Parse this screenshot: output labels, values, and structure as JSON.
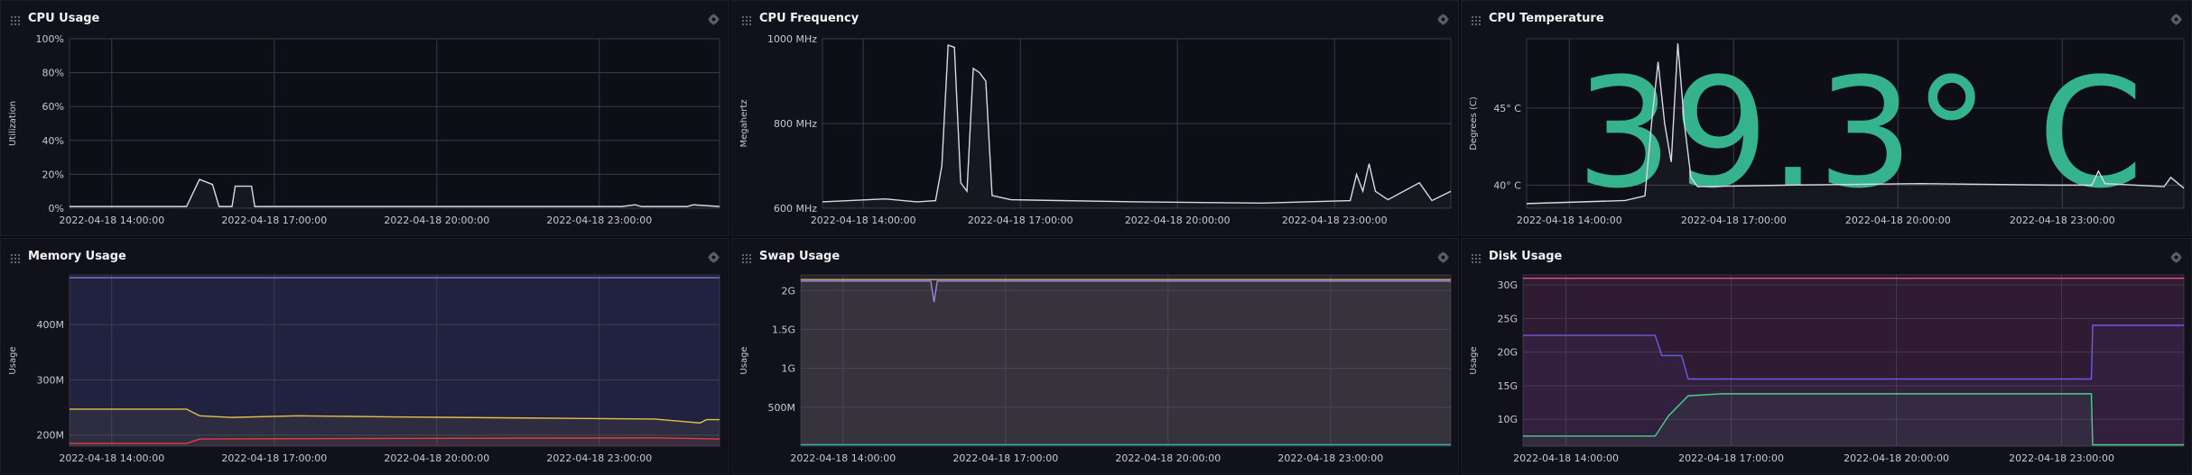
{
  "panels": [
    {
      "title": "CPU Usage",
      "ylabel": "Utilization"
    },
    {
      "title": "CPU Frequency",
      "ylabel": "Megahertz"
    },
    {
      "title": "CPU Temperature",
      "ylabel": "Degrees (C)",
      "big_value": "39.3° C"
    },
    {
      "title": "Memory Usage",
      "ylabel": "Usage"
    },
    {
      "title": "Swap Usage",
      "ylabel": "Usage"
    },
    {
      "title": "Disk Usage",
      "ylabel": "Usage"
    }
  ],
  "icons": {
    "drag": "drag-handle-icon",
    "settings": "gear-icon"
  },
  "colors": {
    "accent_teal": "#35b38c",
    "line_light": "#d9d9e6",
    "memory_yellow": "#e2c046",
    "memory_red": "#d9443b",
    "swap_teal": "#2db3a6",
    "disk_pink": "#e2548a",
    "disk_purple": "#6b5ce6",
    "disk_green": "#48d08a"
  },
  "chart_data": [
    {
      "id": "cpu-usage",
      "type": "line",
      "x_ticks": [
        "2022-04-18 14:00:00",
        "2022-04-18 17:00:00",
        "2022-04-18 20:00:00",
        "2022-04-18 23:00:00"
      ],
      "y_ticks": [
        "0%",
        "20%",
        "40%",
        "60%",
        "80%",
        "100%"
      ],
      "ylim": [
        0,
        100
      ],
      "ylabel": "Utilization",
      "series": [
        {
          "color": "#d9d9e6",
          "points": [
            [
              0,
              1
            ],
            [
              0.18,
              1
            ],
            [
              0.2,
              17
            ],
            [
              0.22,
              14
            ],
            [
              0.23,
              1
            ],
            [
              0.25,
              1
            ],
            [
              0.255,
              13
            ],
            [
              0.28,
              13
            ],
            [
              0.285,
              1
            ],
            [
              0.85,
              1
            ],
            [
              0.87,
              2
            ],
            [
              0.88,
              1
            ],
            [
              0.95,
              1
            ],
            [
              0.96,
              2
            ],
            [
              1,
              1
            ]
          ]
        }
      ]
    },
    {
      "id": "cpu-frequency",
      "type": "line",
      "x_ticks": [
        "2022-04-18 14:00:00",
        "2022-04-18 17:00:00",
        "2022-04-18 20:00:00",
        "2022-04-18 23:00:00"
      ],
      "y_ticks": [
        "600 MHz",
        "800 MHz",
        "1000 MHz"
      ],
      "ylim": [
        600,
        1000
      ],
      "ylabel": "Megahertz",
      "series": [
        {
          "color": "#d9d9e6",
          "points": [
            [
              0,
              615
            ],
            [
              0.1,
              622
            ],
            [
              0.15,
              615
            ],
            [
              0.18,
              618
            ],
            [
              0.19,
              700
            ],
            [
              0.2,
              985
            ],
            [
              0.21,
              980
            ],
            [
              0.22,
              660
            ],
            [
              0.23,
              640
            ],
            [
              0.24,
              930
            ],
            [
              0.25,
              920
            ],
            [
              0.26,
              900
            ],
            [
              0.27,
              630
            ],
            [
              0.3,
              620
            ],
            [
              0.5,
              615
            ],
            [
              0.7,
              612
            ],
            [
              0.84,
              618
            ],
            [
              0.85,
              680
            ],
            [
              0.86,
              640
            ],
            [
              0.87,
              705
            ],
            [
              0.88,
              640
            ],
            [
              0.9,
              620
            ],
            [
              0.95,
              660
            ],
            [
              0.97,
              618
            ],
            [
              1,
              640
            ]
          ]
        }
      ]
    },
    {
      "id": "cpu-temperature",
      "type": "line",
      "x_ticks": [
        "2022-04-18 14:00:00",
        "2022-04-18 17:00:00",
        "2022-04-18 20:00:00",
        "2022-04-18 23:00:00"
      ],
      "y_ticks": [
        "40° C",
        "45° C"
      ],
      "ylim": [
        38.5,
        49.5
      ],
      "ylabel": "Degrees (C)",
      "series": [
        {
          "color": "#d9d9e6",
          "points": [
            [
              0,
              38.8
            ],
            [
              0.15,
              39
            ],
            [
              0.18,
              39.3
            ],
            [
              0.19,
              44
            ],
            [
              0.2,
              48
            ],
            [
              0.21,
              44
            ],
            [
              0.22,
              41.5
            ],
            [
              0.23,
              49.2
            ],
            [
              0.24,
              44
            ],
            [
              0.25,
              40.5
            ],
            [
              0.26,
              39.9
            ],
            [
              0.4,
              40
            ],
            [
              0.6,
              40.1
            ],
            [
              0.8,
              40
            ],
            [
              0.86,
              40
            ],
            [
              0.87,
              40.9
            ],
            [
              0.88,
              40.1
            ],
            [
              0.97,
              39.9
            ],
            [
              0.98,
              40.5
            ],
            [
              1,
              39.8
            ]
          ]
        }
      ]
    },
    {
      "id": "memory-usage",
      "type": "area",
      "x_ticks": [
        "2022-04-18 14:00:00",
        "2022-04-18 17:00:00",
        "2022-04-18 20:00:00",
        "2022-04-18 23:00:00"
      ],
      "y_ticks": [
        "200M",
        "300M",
        "400M"
      ],
      "ylim": [
        180,
        490
      ],
      "ylabel": "Usage",
      "series": [
        {
          "color": "#7b7fd0",
          "points": [
            [
              0,
              485
            ],
            [
              1,
              485
            ]
          ]
        },
        {
          "color": "#e2c046",
          "points": [
            [
              0,
              247
            ],
            [
              0.18,
              247
            ],
            [
              0.2,
              235
            ],
            [
              0.25,
              232
            ],
            [
              0.35,
              235
            ],
            [
              0.5,
              233
            ],
            [
              0.7,
              231
            ],
            [
              0.9,
              229
            ],
            [
              0.97,
              222
            ],
            [
              0.98,
              228
            ],
            [
              1,
              228
            ]
          ]
        },
        {
          "color": "#d9443b",
          "points": [
            [
              0,
              185
            ],
            [
              0.18,
              185
            ],
            [
              0.2,
              193
            ],
            [
              0.5,
              194
            ],
            [
              0.9,
              195
            ],
            [
              1,
              193
            ]
          ]
        }
      ]
    },
    {
      "id": "swap-usage",
      "type": "area",
      "x_ticks": [
        "2022-04-18 14:00:00",
        "2022-04-18 17:00:00",
        "2022-04-18 20:00:00",
        "2022-04-18 23:00:00"
      ],
      "y_ticks": [
        "500M",
        "1G",
        "1.5G",
        "2G"
      ],
      "ylim": [
        0,
        2.2
      ],
      "ylabel": "Usage",
      "series": [
        {
          "color": "#9a7fe0",
          "points": [
            [
              0,
              2.12
            ],
            [
              0.2,
              2.12
            ],
            [
              0.205,
              1.85
            ],
            [
              0.21,
              2.12
            ],
            [
              1,
              2.12
            ]
          ]
        },
        {
          "color": "#c9b370",
          "points": [
            [
              0,
              2.14
            ],
            [
              1,
              2.14
            ]
          ]
        },
        {
          "color": "#2db3a6",
          "points": [
            [
              0,
              0.02
            ],
            [
              1,
              0.02
            ]
          ]
        }
      ]
    },
    {
      "id": "disk-usage",
      "type": "area",
      "x_ticks": [
        "2022-04-18 14:00:00",
        "2022-04-18 17:00:00",
        "2022-04-18 20:00:00",
        "2022-04-18 23:00:00"
      ],
      "y_ticks": [
        "10G",
        "15G",
        "20G",
        "25G",
        "30G"
      ],
      "ylim": [
        6,
        31.5
      ],
      "ylabel": "Usage",
      "series": [
        {
          "color": "#e2548a",
          "points": [
            [
              0,
              31
            ],
            [
              1,
              31
            ]
          ]
        },
        {
          "color": "#6b5ce6",
          "points": [
            [
              0,
              22.5
            ],
            [
              0.2,
              22.5
            ],
            [
              0.21,
              19.5
            ],
            [
              0.24,
              19.5
            ],
            [
              0.25,
              16
            ],
            [
              0.86,
              16
            ],
            [
              0.862,
              24
            ],
            [
              1,
              24
            ]
          ]
        },
        {
          "color": "#48d08a",
          "points": [
            [
              0,
              7.5
            ],
            [
              0.2,
              7.5
            ],
            [
              0.22,
              10.5
            ],
            [
              0.25,
              13.5
            ],
            [
              0.3,
              13.8
            ],
            [
              0.86,
              13.8
            ],
            [
              0.862,
              6.2
            ],
            [
              1,
              6.2
            ]
          ]
        }
      ]
    }
  ]
}
